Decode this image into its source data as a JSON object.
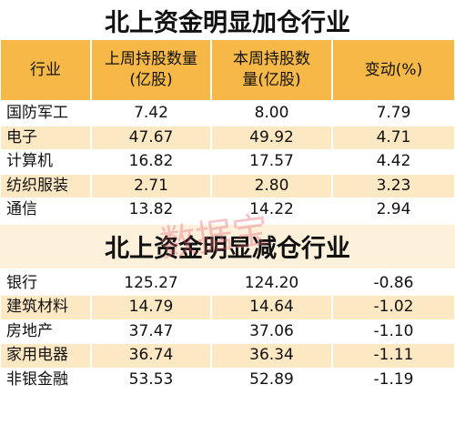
{
  "sections": [
    {
      "title": "北上资金明显加仓行业",
      "header": [
        [
          "行业"
        ],
        [
          "上周持股数量",
          "(亿股)"
        ],
        [
          "本周持股数",
          "量(亿股)"
        ],
        [
          "变动(%)"
        ]
      ],
      "rows": [
        [
          "国防军工",
          "7.42",
          "8.00",
          "7.79"
        ],
        [
          "电子",
          "47.67",
          "49.92",
          "4.71"
        ],
        [
          "计算机",
          "16.82",
          "17.57",
          "4.42"
        ],
        [
          "纺织服装",
          "2.71",
          "2.80",
          "3.23"
        ],
        [
          "通信",
          "13.82",
          "14.22",
          "2.94"
        ]
      ]
    },
    {
      "title": "北上资金明显减仓行业",
      "rows": [
        [
          "银行",
          "125.27",
          "124.20",
          "-0.86"
        ],
        [
          "建筑材料",
          "14.79",
          "14.64",
          "-1.02"
        ],
        [
          "房地产",
          "37.47",
          "37.06",
          "-1.10"
        ],
        [
          "家用电器",
          "36.74",
          "36.34",
          "-1.11"
        ],
        [
          "非银金融",
          "53.53",
          "52.89",
          "-1.19"
        ]
      ]
    }
  ],
  "watermark": "数据宝"
}
